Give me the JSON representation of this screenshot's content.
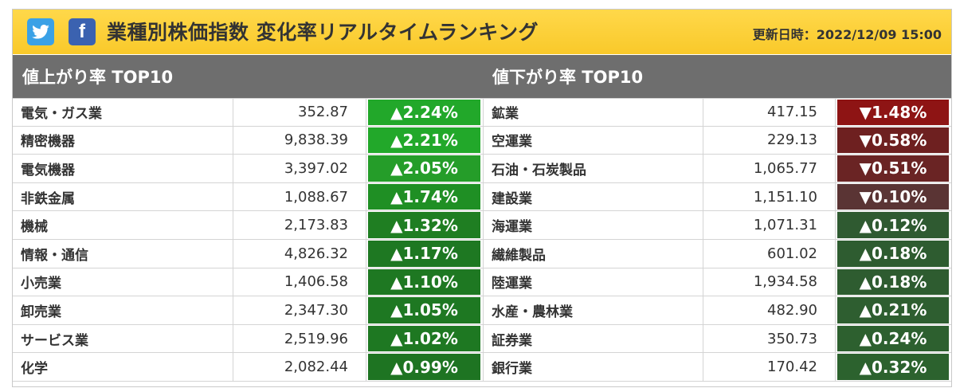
{
  "header": {
    "twitter_icon": "twitter-bird-icon",
    "facebook_icon": "facebook-f-icon",
    "title": "業種別株価指数 変化率リアルタイムランキング",
    "updated_label": "更新日時：2022/12/09 15:00",
    "accent_color": "#f9c92a"
  },
  "gainers": {
    "heading": "値上がり率 TOP10",
    "rows": [
      {
        "name": "電気・ガス業",
        "value": "352.87",
        "change": "▲2.24%",
        "color": "#22a82a"
      },
      {
        "name": "精密機器",
        "value": "9,838.39",
        "change": "▲2.21%",
        "color": "#22a82a"
      },
      {
        "name": "電気機器",
        "value": "3,397.02",
        "change": "▲2.05%",
        "color": "#259d29"
      },
      {
        "name": "非鉄金属",
        "value": "1,088.67",
        "change": "▲1.74%",
        "color": "#1f8f24"
      },
      {
        "name": "機械",
        "value": "2,173.83",
        "change": "▲1.32%",
        "color": "#1f7e22"
      },
      {
        "name": "情報・通信",
        "value": "4,826.32",
        "change": "▲1.17%",
        "color": "#1e7822"
      },
      {
        "name": "小売業",
        "value": "1,406.58",
        "change": "▲1.10%",
        "color": "#1e7822"
      },
      {
        "name": "卸売業",
        "value": "2,347.30",
        "change": "▲1.05%",
        "color": "#1e7822"
      },
      {
        "name": "サービス業",
        "value": "2,519.96",
        "change": "▲1.02%",
        "color": "#1e7822"
      },
      {
        "name": "化学",
        "value": "2,082.44",
        "change": "▲0.99%",
        "color": "#1e7422"
      }
    ]
  },
  "losers": {
    "heading": "値下がり率 TOP10",
    "rows": [
      {
        "name": "鉱業",
        "value": "417.15",
        "change": "▼1.48%",
        "color": "#8e1414"
      },
      {
        "name": "空運業",
        "value": "229.13",
        "change": "▼0.58%",
        "color": "#6e2020"
      },
      {
        "name": "石油・石炭製品",
        "value": "1,065.77",
        "change": "▼0.51%",
        "color": "#6a2424"
      },
      {
        "name": "建設業",
        "value": "1,151.10",
        "change": "▼0.10%",
        "color": "#5a3434"
      },
      {
        "name": "海運業",
        "value": "1,071.31",
        "change": "▲0.12%",
        "color": "#2f5a31"
      },
      {
        "name": "繊維製品",
        "value": "601.02",
        "change": "▲0.18%",
        "color": "#2e5c30"
      },
      {
        "name": "陸運業",
        "value": "1,934.58",
        "change": "▲0.18%",
        "color": "#2e5c30"
      },
      {
        "name": "水産・農林業",
        "value": "482.90",
        "change": "▲0.21%",
        "color": "#2e5e30"
      },
      {
        "name": "証券業",
        "value": "350.73",
        "change": "▲0.24%",
        "color": "#2d602f"
      },
      {
        "name": "銀行業",
        "value": "170.42",
        "change": "▲0.32%",
        "color": "#2c622e"
      }
    ]
  }
}
